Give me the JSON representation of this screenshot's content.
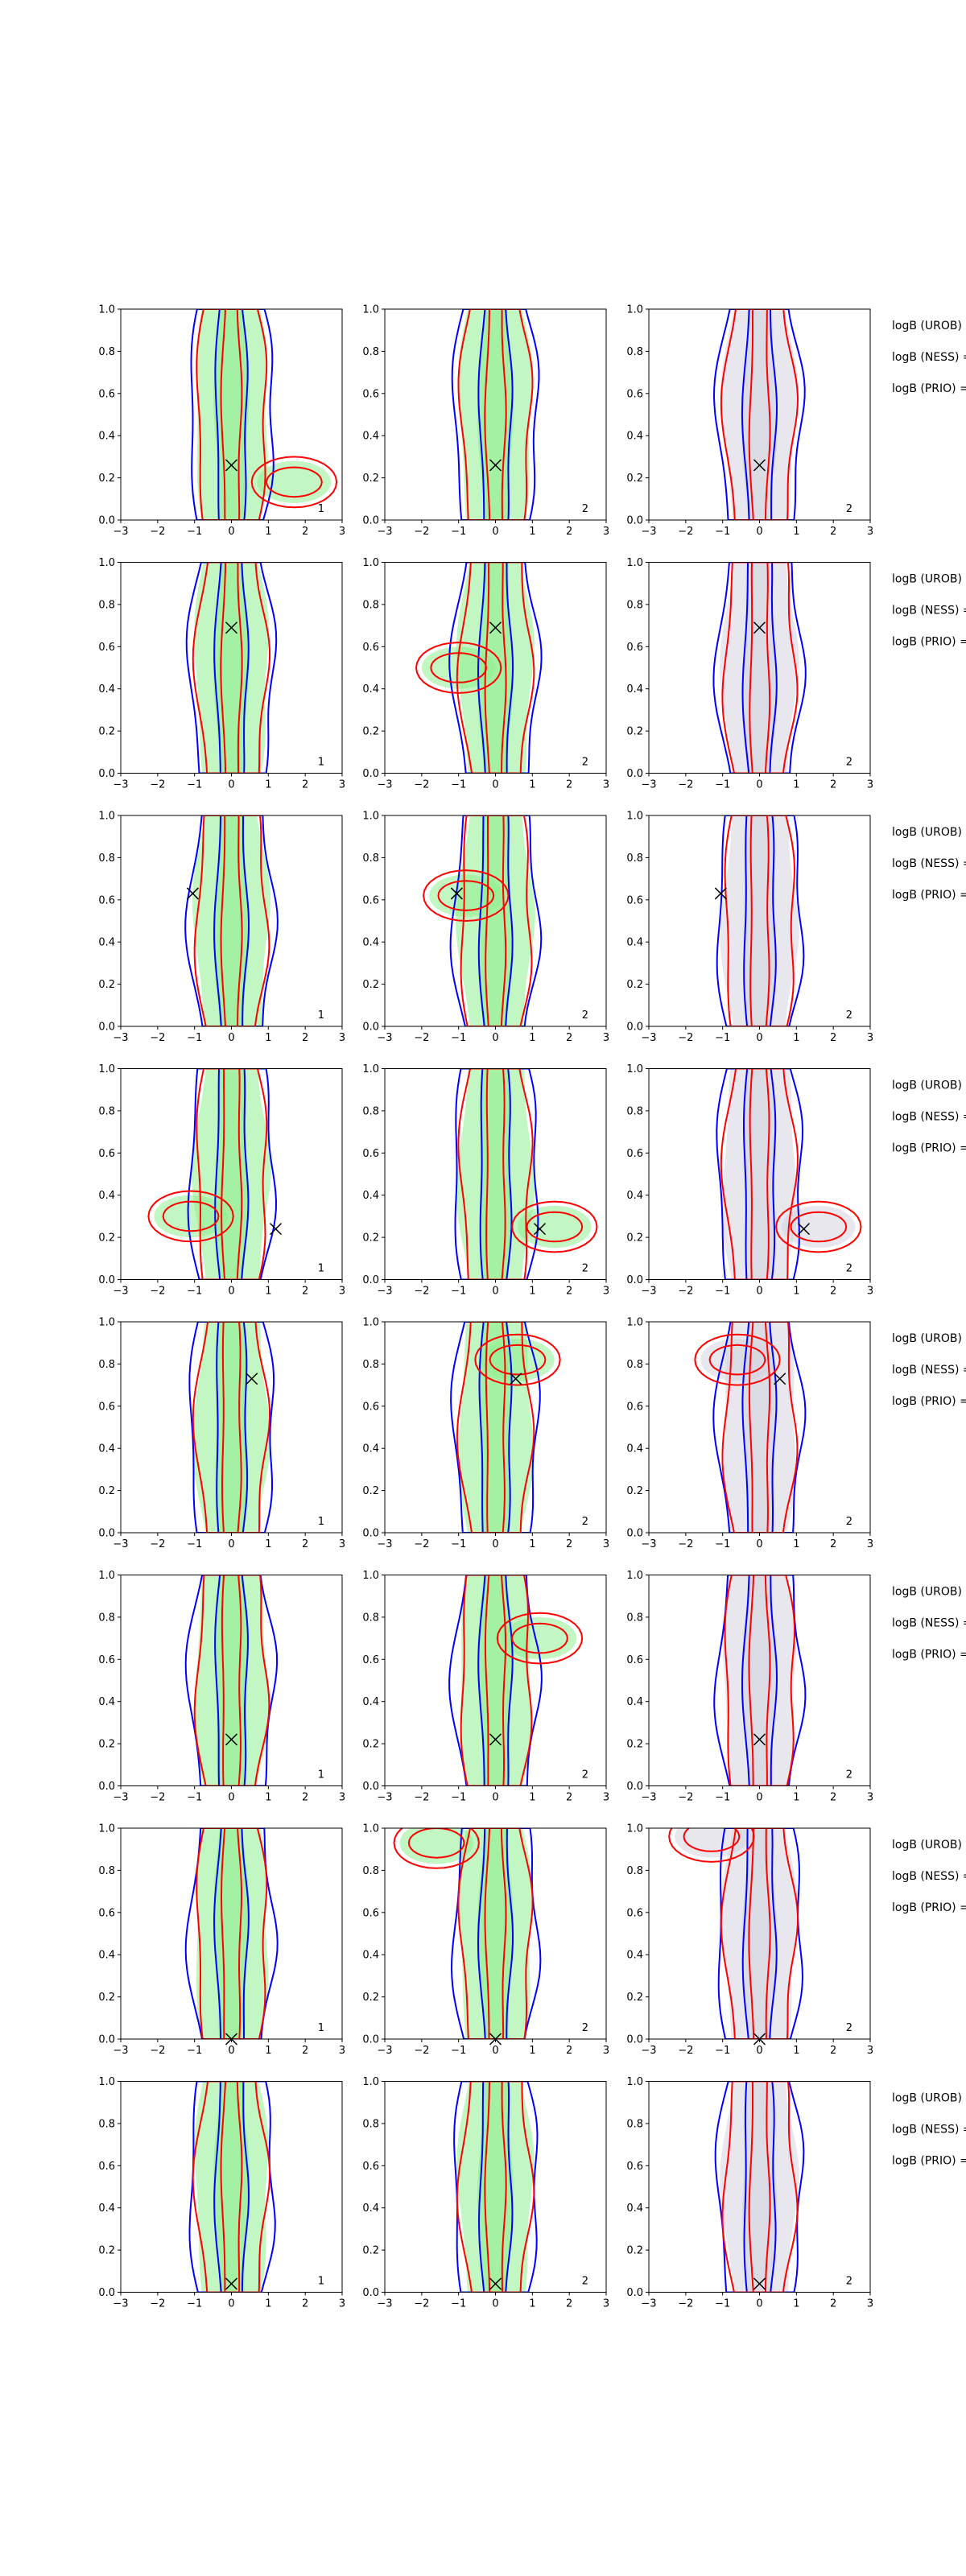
{
  "figure": {
    "legend_fragments": [
      "logB (UROB) =",
      "logB (NESS) =",
      "logB (PRIO) ="
    ]
  },
  "colors": {
    "blue_contour": "#0000ff",
    "red_contour": "#ff0000",
    "green_fill": "#90ee90",
    "gray_fill": "#d3d3de",
    "marker": "#000000"
  },
  "chart_data": {
    "type": "contour",
    "xlim": [
      -3,
      3
    ],
    "ylim": [
      0,
      1
    ],
    "xticks": [
      "−3",
      "−2",
      "−1",
      "0",
      "1",
      "2",
      "3"
    ],
    "yticks": [
      "0.0",
      "0.2",
      "0.4",
      "0.6",
      "0.8",
      "1.0"
    ],
    "grid": false,
    "rows": [
      {
        "marker": [
          0.0,
          0.26
        ],
        "panels": [
          {
            "fill": "green",
            "corner_label": "1",
            "lobe": [
              1.7,
              0.18
            ]
          },
          {
            "fill": "green",
            "corner_label": "2"
          },
          {
            "fill": "gray",
            "corner_label": "2"
          }
        ]
      },
      {
        "marker": [
          0.0,
          0.69
        ],
        "panels": [
          {
            "fill": "green",
            "corner_label": "1"
          },
          {
            "fill": "green",
            "corner_label": "2",
            "lobe": [
              -1.0,
              0.5
            ]
          },
          {
            "fill": "gray",
            "corner_label": "2"
          }
        ]
      },
      {
        "marker": [
          -1.05,
          0.63
        ],
        "panels": [
          {
            "fill": "green",
            "corner_label": "1"
          },
          {
            "fill": "green",
            "corner_label": "2",
            "lobe": [
              -0.8,
              0.62
            ]
          },
          {
            "fill": "gray",
            "corner_label": "2"
          }
        ]
      },
      {
        "marker": [
          1.2,
          0.24
        ],
        "panels": [
          {
            "fill": "green",
            "corner_label": "1",
            "lobe": [
              -1.1,
              0.3
            ]
          },
          {
            "fill": "green",
            "corner_label": "2",
            "lobe": [
              1.6,
              0.25
            ]
          },
          {
            "fill": "gray",
            "corner_label": "2",
            "lobe": [
              1.6,
              0.25
            ]
          }
        ]
      },
      {
        "marker": [
          0.55,
          0.73
        ],
        "panels": [
          {
            "fill": "green",
            "corner_label": "1"
          },
          {
            "fill": "green",
            "corner_label": "2",
            "lobe": [
              0.6,
              0.82
            ]
          },
          {
            "fill": "gray",
            "corner_label": "2",
            "lobe": [
              -0.6,
              0.82
            ]
          }
        ]
      },
      {
        "marker": [
          0.0,
          0.22
        ],
        "panels": [
          {
            "fill": "green",
            "corner_label": "1"
          },
          {
            "fill": "green",
            "corner_label": "2",
            "lobe": [
              1.2,
              0.7
            ]
          },
          {
            "fill": "gray",
            "corner_label": "2"
          }
        ]
      },
      {
        "marker": [
          0.0,
          0.0
        ],
        "panels": [
          {
            "fill": "green",
            "corner_label": "1"
          },
          {
            "fill": "green",
            "corner_label": "2",
            "lobe": [
              -1.6,
              0.93
            ]
          },
          {
            "fill": "gray",
            "corner_label": "2",
            "lobe": [
              -1.3,
              0.96
            ]
          }
        ]
      },
      {
        "marker": [
          0.0,
          0.04
        ],
        "panels": [
          {
            "fill": "green",
            "corner_label": "1"
          },
          {
            "fill": "green",
            "corner_label": "2"
          },
          {
            "fill": "gray",
            "corner_label": "2"
          }
        ]
      }
    ]
  }
}
